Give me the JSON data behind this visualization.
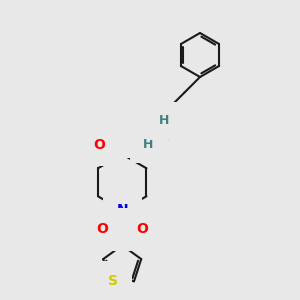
{
  "bg_color": "#e8e8e8",
  "bond_color": "#1a1a1a",
  "lw": 1.5,
  "atom_colors": {
    "O": "#ff0000",
    "N": "#0000ee",
    "S": "#cccc00",
    "H": "#408080"
  },
  "figsize": [
    3.0,
    3.0
  ],
  "dpi": 100,
  "xlim": [
    0,
    300
  ],
  "ylim": [
    0,
    300
  ]
}
